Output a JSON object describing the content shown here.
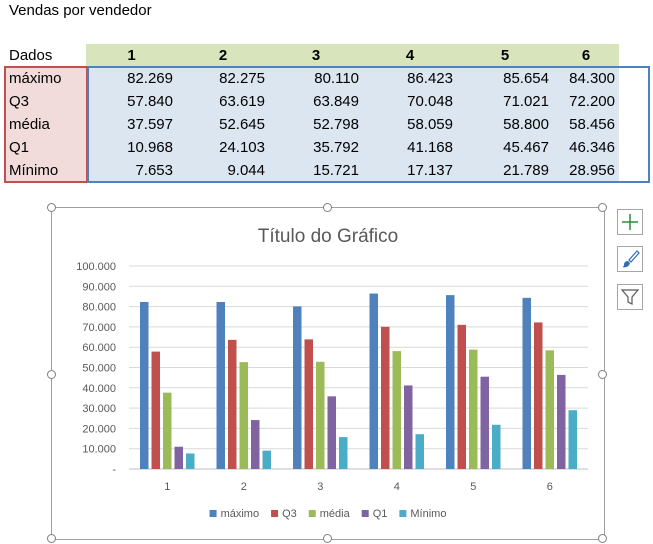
{
  "sheet": {
    "title": "Vendas por vendedor"
  },
  "table": {
    "corner": "Dados",
    "columns": [
      "1",
      "2",
      "3",
      "4",
      "5",
      "6"
    ],
    "rows": [
      {
        "label": "máximo",
        "values": [
          "82.269",
          "82.275",
          "80.110",
          "86.423",
          "85.654",
          "84.300"
        ]
      },
      {
        "label": "Q3",
        "values": [
          "57.840",
          "63.619",
          "63.849",
          "70.048",
          "71.021",
          "72.200"
        ]
      },
      {
        "label": "média",
        "values": [
          "37.597",
          "52.645",
          "52.798",
          "58.059",
          "58.800",
          "58.456"
        ]
      },
      {
        "label": "Q1",
        "values": [
          "10.968",
          "24.103",
          "35.792",
          "41.168",
          "45.467",
          "46.346"
        ]
      },
      {
        "label": "Mínimo",
        "values": [
          "7.653",
          "9.044",
          "15.721",
          "17.137",
          "21.789",
          "28.956"
        ]
      }
    ]
  },
  "side_buttons": [
    {
      "icon": "plus-icon"
    },
    {
      "icon": "brush-icon"
    },
    {
      "icon": "filter-icon"
    }
  ],
  "chart_data": {
    "type": "bar",
    "title": "Título do Gráfico",
    "categories": [
      "1",
      "2",
      "3",
      "4",
      "5",
      "6"
    ],
    "series": [
      {
        "name": "máximo",
        "color": "#4f81bd",
        "values": [
          82269,
          82275,
          80110,
          86423,
          85654,
          84300
        ]
      },
      {
        "name": "Q3",
        "color": "#c0504d",
        "values": [
          57840,
          63619,
          63849,
          70048,
          71021,
          72200
        ]
      },
      {
        "name": "média",
        "color": "#9bbb59",
        "values": [
          37597,
          52645,
          52798,
          58059,
          58800,
          58456
        ]
      },
      {
        "name": "Q1",
        "color": "#8064a2",
        "values": [
          10968,
          24103,
          35792,
          41168,
          45467,
          46346
        ]
      },
      {
        "name": "Mínimo",
        "color": "#4bacc6",
        "values": [
          7653,
          9044,
          15721,
          17137,
          21789,
          28956
        ]
      }
    ],
    "ylim": [
      0,
      100000
    ],
    "yticks": [
      "-",
      "10.000",
      "20.000",
      "30.000",
      "40.000",
      "50.000",
      "60.000",
      "70.000",
      "80.000",
      "90.000",
      "100.000"
    ],
    "grid": true,
    "legend": "bottom"
  }
}
